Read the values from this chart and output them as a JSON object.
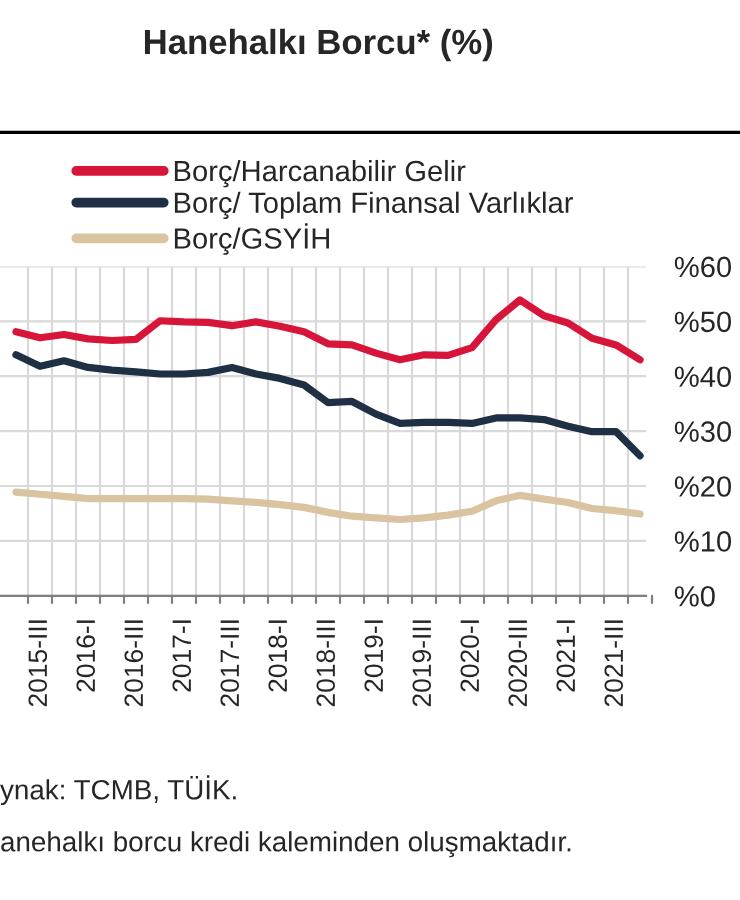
{
  "chart_data": {
    "type": "line",
    "title": "Hanehalkı Borcu* (%)",
    "categories": [
      null,
      "2015-III",
      null,
      "2016-I",
      null,
      "2016-III",
      null,
      "2017-I",
      null,
      "2017-III",
      null,
      "2018-I",
      null,
      "2018-III",
      null,
      "2019-I",
      null,
      "2019-III",
      null,
      "2020-I",
      null,
      "2020-III",
      null,
      "2021-I",
      null,
      "2021-III",
      null
    ],
    "series": [
      {
        "name": "Borç/Harcanabilir Gelir",
        "color": "#d7153a",
        "values": [
          48.1,
          47.0,
          47.6,
          46.8,
          46.5,
          46.7,
          50.1,
          49.9,
          49.8,
          49.2,
          49.9,
          49.1,
          48.1,
          45.9,
          45.7,
          44.2,
          43.0,
          43.9,
          43.8,
          45.2,
          50.3,
          53.9,
          51.0,
          49.7,
          46.9,
          45.7,
          43.0
        ]
      },
      {
        "name": "Borç/ Toplam Finansal Varlıklar",
        "color": "#1f3044",
        "values": [
          43.9,
          41.8,
          42.8,
          41.6,
          41.1,
          40.8,
          40.4,
          40.4,
          40.7,
          41.6,
          40.4,
          39.6,
          38.4,
          35.2,
          35.4,
          33.1,
          31.4,
          31.6,
          31.6,
          31.4,
          32.4,
          32.4,
          32.1,
          30.9,
          29.9,
          29.9,
          25.5
        ]
      },
      {
        "name": "Borç/GSYİH",
        "color": "#d9c3a0",
        "values": [
          18.9,
          18.5,
          18.1,
          17.7,
          17.7,
          17.7,
          17.7,
          17.7,
          17.6,
          17.3,
          17.0,
          16.6,
          16.1,
          15.2,
          14.5,
          14.2,
          13.9,
          14.2,
          14.7,
          15.4,
          17.3,
          18.3,
          17.6,
          17.0,
          15.9,
          15.5,
          14.9
        ]
      }
    ],
    "ylim": [
      0,
      60
    ],
    "yticks": [
      {
        "value": 0,
        "label": "%0"
      },
      {
        "value": 10,
        "label": "%10"
      },
      {
        "value": 20,
        "label": "%20"
      },
      {
        "value": 30,
        "label": "%30"
      },
      {
        "value": 40,
        "label": "%40"
      },
      {
        "value": 50,
        "label": "%50"
      },
      {
        "value": 60,
        "label": "%60"
      }
    ],
    "grid": true,
    "legend": "top",
    "marker": "none",
    "line_style": "solid",
    "annotations": [
      "ynak: TCMB, TÜİK.",
      "anehalkı borcu kredi kaleminden oluşmaktadır."
    ]
  }
}
